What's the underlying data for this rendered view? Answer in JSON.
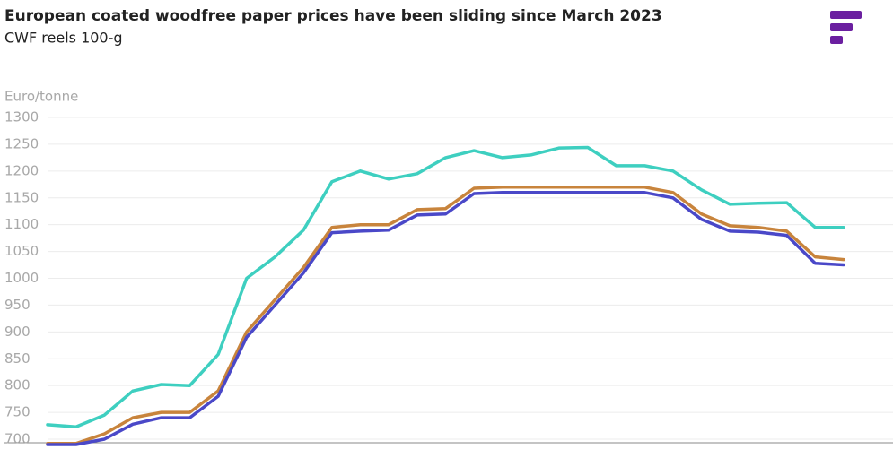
{
  "chart_data": {
    "type": "line",
    "title": "European coated woodfree paper prices have been sliding since March 2023",
    "subtitle": "CWF reels 100-g",
    "y_label": "Euro/tonne",
    "categories": [
      null,
      null,
      null,
      null,
      null,
      null,
      null,
      null,
      null,
      null,
      null,
      null,
      null,
      null,
      null,
      null,
      null,
      null,
      null,
      null,
      null,
      null,
      null,
      null,
      null,
      null,
      null,
      null,
      null
    ],
    "series": [
      {
        "color": "#3ecfc0",
        "values": [
          727,
          723,
          745,
          790,
          802,
          800,
          858,
          1000,
          1040,
          1090,
          1180,
          1200,
          1185,
          1195,
          1225,
          1238,
          1225,
          1230,
          1243,
          1244,
          1210,
          1210,
          1200,
          1165,
          1138,
          1140,
          1141,
          1095,
          1095
        ]
      },
      {
        "color": "#c8843c",
        "values": [
          692,
          692,
          710,
          740,
          750,
          750,
          790,
          900,
          960,
          1020,
          1095,
          1100,
          1100,
          1128,
          1130,
          1168,
          1170,
          1170,
          1170,
          1170,
          1170,
          1170,
          1160,
          1120,
          1098,
          1095,
          1088,
          1040,
          1035
        ]
      },
      {
        "color": "#4a48c8",
        "values": [
          690,
          690,
          700,
          728,
          740,
          740,
          780,
          890,
          950,
          1010,
          1085,
          1088,
          1090,
          1118,
          1120,
          1158,
          1160,
          1160,
          1160,
          1160,
          1160,
          1160,
          1150,
          1110,
          1088,
          1086,
          1080,
          1028,
          1025
        ]
      }
    ],
    "ylim": [
      690,
      1300
    ],
    "yticks": [
      700,
      750,
      800,
      850,
      900,
      950,
      1000,
      1050,
      1100,
      1150,
      1200,
      1250,
      1300
    ],
    "grid": true
  }
}
